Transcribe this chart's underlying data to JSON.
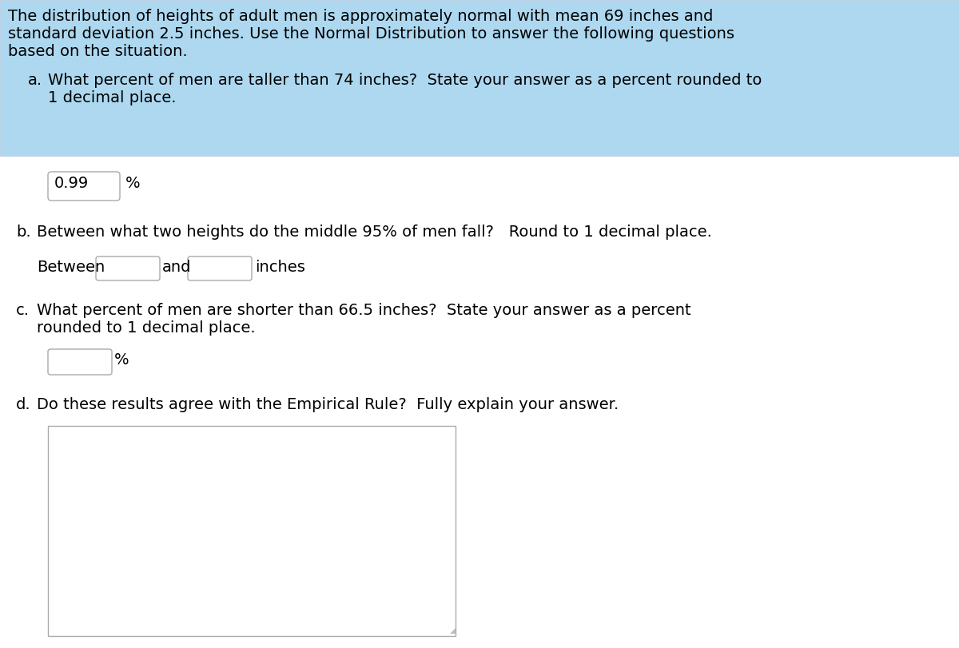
{
  "bg_color": "#ffffff",
  "header_bg_color": "#add8f0",
  "header_line1": "The distribution of heights of adult men is approximately normal with mean 69 inches and",
  "header_line2": "standard deviation 2.5 inches. Use the Normal Distribution to answer the following questions",
  "header_line3": "based on the situation.",
  "qa_label": "a.",
  "qa_text1": "What percent of men are taller than 74 inches?  State your answer as a percent rounded to",
  "qa_text2": "1 decimal place.",
  "answer_a_value": "0.99",
  "answer_a_suffix": "%",
  "qb_label": "b.",
  "qb_text": "Between what two heights do the middle 95% of men fall?   Round to 1 decimal place.",
  "answer_b_prefix": "Between",
  "answer_b_and": "and",
  "answer_b_suffix": "inches",
  "qc_label": "c.",
  "qc_text1": "What percent of men are shorter than 66.5 inches?  State your answer as a percent",
  "qc_text2": "rounded to 1 decimal place.",
  "answer_c_suffix": "%",
  "qd_label": "d.",
  "qd_text": "Do these results agree with the Empirical Rule?  Fully explain your answer.",
  "font_size": 14.0,
  "font_family": "DejaVu Sans"
}
